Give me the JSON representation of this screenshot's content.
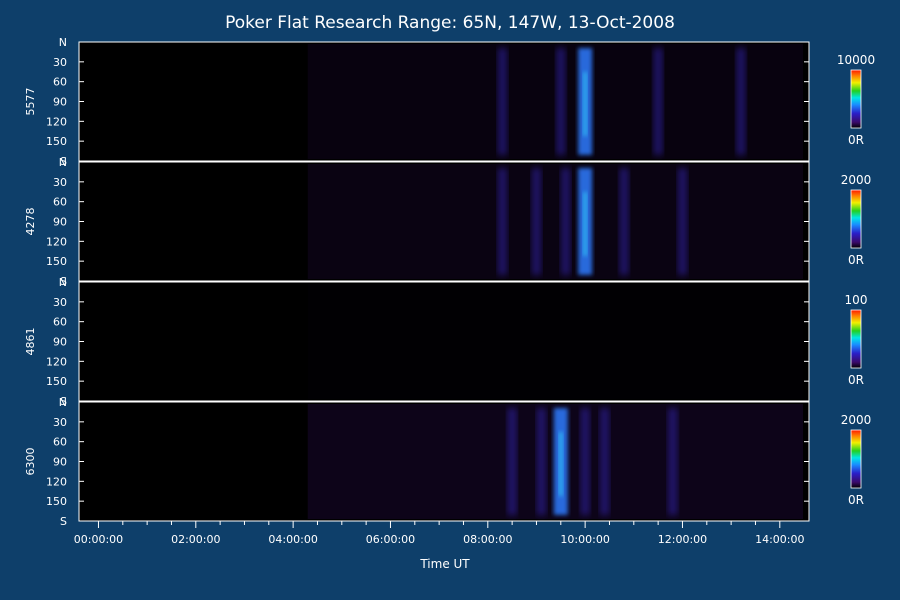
{
  "chart_data": {
    "type": "heatmap",
    "title": "Poker Flat Research Range: 65N, 147W, 13-Oct-2008",
    "xlabel": "Time UT",
    "x_tick_labels": [
      "00:00:00",
      "02:00:00",
      "04:00:00",
      "06:00:00",
      "08:00:00",
      "10:00:00",
      "12:00:00",
      "14:00:00"
    ],
    "x_tick_hours": [
      0,
      2,
      4,
      6,
      8,
      10,
      12,
      14
    ],
    "xlim_hours": [
      -0.4,
      14.6
    ],
    "y_tick_labels": [
      "N",
      "30",
      "60",
      "90",
      "120",
      "150",
      "S"
    ],
    "y_tick_values": [
      0,
      30,
      60,
      90,
      120,
      150,
      180
    ],
    "ylim": [
      0,
      180
    ],
    "colormap": "rainbow",
    "panels": [
      {
        "channel": "5577",
        "colorbar_max": "10000",
        "colorbar_min": "0R",
        "data_start_hour": 4.3,
        "band_hours": [
          8.3,
          9.5,
          10.0,
          11.5,
          13.2
        ],
        "peak_hour": 10.0
      },
      {
        "channel": "4278",
        "colorbar_max": "2000",
        "colorbar_min": "0R",
        "data_start_hour": 4.3,
        "band_hours": [
          8.3,
          9.0,
          9.6,
          10.0,
          10.8,
          12.0
        ],
        "peak_hour": 10.0
      },
      {
        "channel": "4861",
        "colorbar_max": "100",
        "colorbar_min": "0R",
        "data_start_hour": 4.3,
        "band_hours": [],
        "peak_hour": null
      },
      {
        "channel": "6300",
        "colorbar_max": "2000",
        "colorbar_min": "0R",
        "data_start_hour": 4.3,
        "band_hours": [
          8.5,
          9.1,
          9.5,
          10.0,
          10.4,
          11.8
        ],
        "peak_hour": 9.5
      }
    ],
    "colors": {
      "background": "#0e3f6a",
      "plot_background": "#000000",
      "axis": "#ffffff"
    }
  }
}
